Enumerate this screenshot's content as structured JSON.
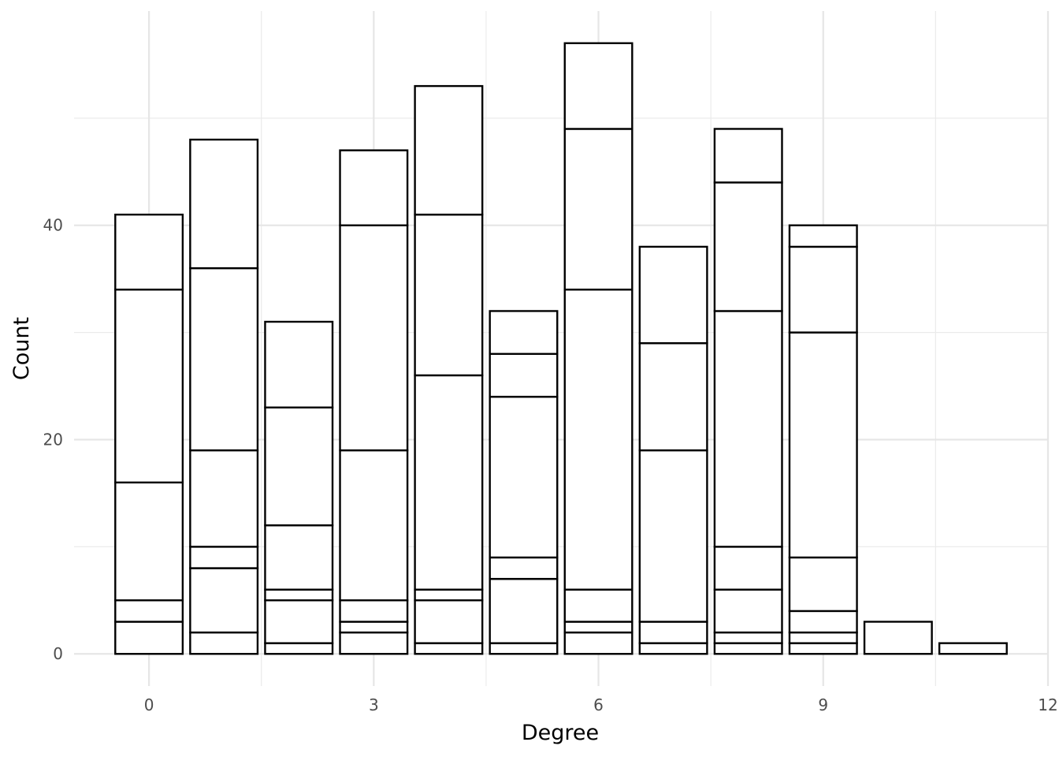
{
  "chart_data": {
    "type": "bar",
    "stacked": true,
    "xlabel": "Degree",
    "ylabel": "Count",
    "xlim": [
      -1,
      12
    ],
    "ylim": [
      -3,
      60
    ],
    "x_ticks": [
      0,
      3,
      6,
      9,
      12
    ],
    "y_ticks": [
      0,
      20,
      40
    ],
    "grid": true,
    "bar_fill": "#ffffff",
    "bar_stroke": "#000000",
    "bars": [
      {
        "x": 0,
        "boundaries": [
          3,
          5,
          16,
          34,
          41
        ]
      },
      {
        "x": 1,
        "boundaries": [
          2,
          8,
          10,
          19,
          36,
          48
        ]
      },
      {
        "x": 2,
        "boundaries": [
          1,
          5,
          6,
          12,
          23,
          31
        ]
      },
      {
        "x": 3,
        "boundaries": [
          2,
          3,
          5,
          19,
          40,
          47
        ]
      },
      {
        "x": 4,
        "boundaries": [
          1,
          5,
          6,
          26,
          41,
          53
        ]
      },
      {
        "x": 5,
        "boundaries": [
          1,
          7,
          9,
          24,
          28,
          32
        ]
      },
      {
        "x": 6,
        "boundaries": [
          2,
          3,
          6,
          34,
          49,
          57
        ]
      },
      {
        "x": 7,
        "boundaries": [
          1,
          3,
          19,
          29,
          38
        ]
      },
      {
        "x": 8,
        "boundaries": [
          1,
          2,
          6,
          10,
          32,
          44,
          49
        ]
      },
      {
        "x": 9,
        "boundaries": [
          1,
          2,
          4,
          9,
          30,
          38,
          40
        ]
      },
      {
        "x": 10,
        "boundaries": [
          3
        ]
      },
      {
        "x": 11,
        "boundaries": [
          1
        ]
      }
    ]
  }
}
